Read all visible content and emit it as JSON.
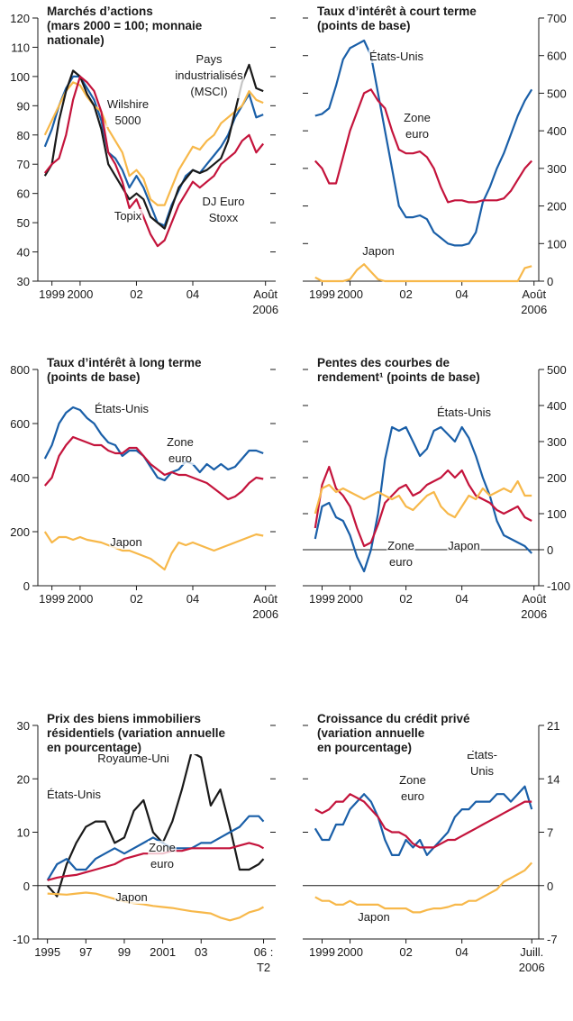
{
  "chart_data": [
    {
      "type": "line",
      "title": "Marchés d’actions\n(mars 2000 = 100; monnaie\nnationale)",
      "x": [
        1998.75,
        1999,
        1999.25,
        1999.5,
        1999.75,
        2000,
        2000.25,
        2000.5,
        2000.75,
        2001,
        2001.25,
        2001.5,
        2001.75,
        2002,
        2002.25,
        2002.5,
        2002.75,
        2003,
        2003.25,
        2003.5,
        2003.75,
        2004,
        2004.25,
        2004.5,
        2004.75,
        2005,
        2005.25,
        2005.5,
        2005.75,
        2006,
        2006.25,
        2006.5
      ],
      "xlim": [
        1998.5,
        2006.75
      ],
      "xticks": [
        1999,
        2000,
        {
          "value": 2002,
          "label": "02"
        },
        {
          "value": 2004,
          "label": "04"
        },
        {
          "value": 2006.58,
          "label": "Août\n2006"
        }
      ],
      "ylim": [
        30,
        120
      ],
      "yticks": [
        30,
        40,
        50,
        60,
        70,
        80,
        90,
        100,
        110,
        120
      ],
      "yaxis_side": "left",
      "zero_line": false,
      "series": [
        {
          "name": "Pays\nindustrialisés\n(MSCI)",
          "color": "#1a5fa8",
          "values": [
            76,
            82,
            90,
            96,
            100,
            100,
            96,
            92,
            85,
            74,
            72,
            68,
            62,
            66,
            62,
            56,
            50,
            49,
            56,
            61,
            66,
            68,
            67,
            70,
            73,
            76,
            80,
            86,
            90,
            94,
            86,
            87
          ]
        },
        {
          "name": "Wilshire\n5000",
          "color": "#f7b84a",
          "values": [
            80,
            85,
            90,
            95,
            98,
            97,
            93,
            90,
            88,
            82,
            78,
            74,
            66,
            68,
            65,
            58,
            56,
            56,
            62,
            68,
            72,
            76,
            75,
            78,
            80,
            84,
            86,
            88,
            90,
            95,
            92,
            91
          ]
        },
        {
          "name": "Topix",
          "color": "#1a1a1a",
          "values": [
            66,
            70,
            85,
            95,
            102,
            100,
            94,
            90,
            82,
            70,
            66,
            62,
            58,
            60,
            58,
            52,
            50,
            48,
            55,
            62,
            65,
            68,
            67,
            68,
            70,
            72,
            78,
            88,
            98,
            104,
            96,
            95
          ]
        },
        {
          "name": "DJ Euro\nStoxx",
          "color": "#c4143c",
          "values": [
            67,
            70,
            72,
            80,
            92,
            100,
            98,
            95,
            88,
            74,
            70,
            64,
            55,
            58,
            52,
            46,
            42,
            44,
            50,
            56,
            60,
            64,
            62,
            64,
            66,
            70,
            72,
            74,
            78,
            80,
            74,
            77
          ]
        }
      ]
    },
    {
      "type": "line",
      "title": "Taux d’intérêt à court terme\n(points de base)",
      "x": [
        1998.75,
        1999,
        1999.25,
        1999.5,
        1999.75,
        2000,
        2000.25,
        2000.5,
        2000.75,
        2001,
        2001.25,
        2001.5,
        2001.75,
        2002,
        2002.25,
        2002.5,
        2002.75,
        2003,
        2003.25,
        2003.5,
        2003.75,
        2004,
        2004.25,
        2004.5,
        2004.75,
        2005,
        2005.25,
        2005.5,
        2005.75,
        2006,
        2006.25,
        2006.5
      ],
      "xlim": [
        1998.5,
        2006.75
      ],
      "xticks": [
        1999,
        2000,
        {
          "value": 2002,
          "label": "02"
        },
        {
          "value": 2004,
          "label": "04"
        },
        {
          "value": 2006.58,
          "label": "Août\n2006"
        }
      ],
      "ylim": [
        0,
        700
      ],
      "yticks": [
        0,
        100,
        200,
        300,
        400,
        500,
        600,
        700
      ],
      "yaxis_side": "right",
      "zero_line": false,
      "series": [
        {
          "name": "États-Unis",
          "color": "#1a5fa8",
          "values": [
            440,
            445,
            460,
            520,
            590,
            620,
            630,
            640,
            600,
            500,
            400,
            300,
            200,
            170,
            170,
            175,
            165,
            130,
            115,
            100,
            95,
            95,
            100,
            130,
            210,
            250,
            300,
            340,
            390,
            440,
            480,
            510
          ]
        },
        {
          "name": "Zone\neuro",
          "color": "#c4143c",
          "values": [
            320,
            300,
            260,
            260,
            330,
            400,
            450,
            500,
            510,
            480,
            460,
            400,
            350,
            340,
            340,
            345,
            330,
            300,
            250,
            210,
            215,
            215,
            210,
            210,
            215,
            215,
            215,
            220,
            240,
            270,
            300,
            320
          ]
        },
        {
          "name": "Japon",
          "color": "#f7b84a",
          "values": [
            10,
            0,
            0,
            0,
            0,
            5,
            30,
            45,
            25,
            5,
            0,
            0,
            0,
            0,
            0,
            0,
            0,
            0,
            0,
            0,
            0,
            0,
            0,
            0,
            0,
            0,
            0,
            0,
            0,
            0,
            35,
            40
          ]
        }
      ]
    },
    {
      "type": "line",
      "title": "Taux d’intérêt à long terme\n(points de base)",
      "x": [
        1998.75,
        1999,
        1999.25,
        1999.5,
        1999.75,
        2000,
        2000.25,
        2000.5,
        2000.75,
        2001,
        2001.25,
        2001.5,
        2001.75,
        2002,
        2002.25,
        2002.5,
        2002.75,
        2003,
        2003.25,
        2003.5,
        2003.75,
        2004,
        2004.25,
        2004.5,
        2004.75,
        2005,
        2005.25,
        2005.5,
        2005.75,
        2006,
        2006.25,
        2006.5
      ],
      "xlim": [
        1998.5,
        2006.75
      ],
      "xticks": [
        1999,
        2000,
        {
          "value": 2002,
          "label": "02"
        },
        {
          "value": 2004,
          "label": "04"
        },
        {
          "value": 2006.58,
          "label": "Août\n2006"
        }
      ],
      "ylim": [
        0,
        800
      ],
      "yticks": [
        0,
        200,
        400,
        600,
        800
      ],
      "yaxis_side": "left",
      "zero_line": false,
      "series": [
        {
          "name": "États-Unis",
          "color": "#1a5fa8",
          "values": [
            470,
            520,
            600,
            640,
            660,
            650,
            620,
            600,
            560,
            530,
            520,
            480,
            500,
            500,
            480,
            440,
            400,
            390,
            420,
            430,
            460,
            450,
            420,
            450,
            430,
            450,
            430,
            440,
            470,
            500,
            500,
            490
          ]
        },
        {
          "name": "Zone\neuro",
          "color": "#c4143c",
          "values": [
            370,
            400,
            480,
            520,
            550,
            540,
            530,
            520,
            520,
            500,
            490,
            490,
            510,
            510,
            480,
            450,
            430,
            410,
            420,
            410,
            410,
            400,
            390,
            380,
            360,
            340,
            320,
            330,
            350,
            380,
            400,
            395
          ]
        },
        {
          "name": "Japon",
          "color": "#f7b84a",
          "values": [
            200,
            160,
            180,
            180,
            170,
            180,
            170,
            165,
            160,
            150,
            140,
            130,
            130,
            120,
            110,
            100,
            80,
            60,
            120,
            160,
            150,
            160,
            150,
            140,
            130,
            140,
            150,
            160,
            170,
            180,
            190,
            185
          ]
        }
      ]
    },
    {
      "type": "line",
      "title": "Pentes des courbes de\nrendement¹ (points de base)",
      "x": [
        1998.75,
        1999,
        1999.25,
        1999.5,
        1999.75,
        2000,
        2000.25,
        2000.5,
        2000.75,
        2001,
        2001.25,
        2001.5,
        2001.75,
        2002,
        2002.25,
        2002.5,
        2002.75,
        2003,
        2003.25,
        2003.5,
        2003.75,
        2004,
        2004.25,
        2004.5,
        2004.75,
        2005,
        2005.25,
        2005.5,
        2005.75,
        2006,
        2006.25,
        2006.5
      ],
      "xlim": [
        1998.5,
        2006.75
      ],
      "xticks": [
        1999,
        2000,
        {
          "value": 2002,
          "label": "02"
        },
        {
          "value": 2004,
          "label": "04"
        },
        {
          "value": 2006.58,
          "label": "Août\n2006"
        }
      ],
      "ylim": [
        -100,
        500
      ],
      "yticks": [
        -100,
        0,
        100,
        200,
        300,
        400,
        500
      ],
      "yaxis_side": "right",
      "zero_line": true,
      "series": [
        {
          "name": "États-Unis",
          "color": "#1a5fa8",
          "values": [
            30,
            120,
            130,
            90,
            80,
            40,
            -20,
            -60,
            0,
            100,
            250,
            340,
            330,
            340,
            300,
            260,
            280,
            330,
            340,
            320,
            300,
            340,
            310,
            260,
            200,
            150,
            80,
            40,
            30,
            20,
            10,
            -10
          ]
        },
        {
          "name": "Zone\neuro",
          "color": "#c4143c",
          "values": [
            60,
            180,
            230,
            170,
            150,
            120,
            60,
            10,
            20,
            70,
            130,
            150,
            170,
            180,
            150,
            160,
            180,
            190,
            200,
            220,
            200,
            220,
            180,
            150,
            140,
            130,
            110,
            100,
            110,
            120,
            90,
            80
          ]
        },
        {
          "name": "Japon",
          "color": "#f7b84a",
          "values": [
            100,
            170,
            180,
            160,
            170,
            160,
            150,
            140,
            150,
            160,
            150,
            140,
            150,
            120,
            110,
            130,
            150,
            160,
            120,
            100,
            90,
            120,
            150,
            140,
            170,
            150,
            160,
            170,
            160,
            190,
            150,
            150
          ]
        }
      ]
    },
    {
      "type": "line",
      "title": "Prix des biens immobiliers\nrésidentiels (variation annuelle\nen pourcentage)",
      "x": [
        1995,
        1995.5,
        1996,
        1996.5,
        1997,
        1997.5,
        1998,
        1998.5,
        1999,
        1999.5,
        2000,
        2000.5,
        2001,
        2001.5,
        2002,
        2002.5,
        2003,
        2003.5,
        2004,
        2004.5,
        2005,
        2005.5,
        2006,
        2006.25
      ],
      "xlim": [
        1994.5,
        2006.6
      ],
      "xticks": [
        1995,
        {
          "value": 1997,
          "label": "97"
        },
        {
          "value": 1999,
          "label": "99"
        },
        2001,
        {
          "value": 2003,
          "label": "03"
        },
        {
          "value": 2006.25,
          "label": "06 :\nT2"
        }
      ],
      "ylim": [
        -10,
        30
      ],
      "yticks": [
        -10,
        0,
        10,
        20,
        30
      ],
      "yaxis_side": "left",
      "zero_line": true,
      "series": [
        {
          "name": "Royaume-Uni",
          "color": "#1a1a1a",
          "values": [
            0,
            -2,
            4,
            8,
            11,
            12,
            12,
            8,
            9,
            14,
            16,
            10,
            8,
            12,
            18,
            25,
            24,
            15,
            18,
            11,
            3,
            3,
            4,
            5
          ]
        },
        {
          "name": "États-Unis",
          "color": "#1a5fa8",
          "values": [
            1,
            4,
            5,
            3,
            3,
            5,
            6,
            7,
            6,
            7,
            8,
            9,
            8,
            7,
            7,
            7,
            8,
            8,
            9,
            10,
            11,
            13,
            13,
            12
          ]
        },
        {
          "name": "Zone\neuro",
          "color": "#c4143c",
          "values": [
            1,
            1.5,
            1.8,
            2,
            2.5,
            3,
            3.5,
            4,
            5,
            5.5,
            6,
            6,
            6,
            6.5,
            6.5,
            7,
            7,
            7,
            7,
            7,
            7.5,
            8,
            7.5,
            7
          ]
        },
        {
          "name": "Japon",
          "color": "#f7b84a",
          "values": [
            -1.5,
            -1.6,
            -1.7,
            -1.5,
            -1.3,
            -1.5,
            -2,
            -2.5,
            -3,
            -3.3,
            -3.5,
            -3.8,
            -4,
            -4.2,
            -4.5,
            -4.8,
            -5,
            -5.2,
            -6,
            -6.5,
            -6,
            -5,
            -4.5,
            -4
          ]
        }
      ]
    },
    {
      "type": "line",
      "title": "Croissance du crédit privé\n(variation annuelle\nen pourcentage)",
      "x": [
        1998.75,
        1999,
        1999.25,
        1999.5,
        1999.75,
        2000,
        2000.25,
        2000.5,
        2000.75,
        2001,
        2001.25,
        2001.5,
        2001.75,
        2002,
        2002.25,
        2002.5,
        2002.75,
        2003,
        2003.25,
        2003.5,
        2003.75,
        2004,
        2004.25,
        2004.5,
        2004.75,
        2005,
        2005.25,
        2005.5,
        2005.75,
        2006,
        2006.25,
        2006.5
      ],
      "xlim": [
        1998.5,
        2006.75
      ],
      "xticks": [
        1999,
        2000,
        {
          "value": 2002,
          "label": "02"
        },
        {
          "value": 2004,
          "label": "04"
        },
        {
          "value": 2006.5,
          "label": "Juill.\n2006"
        }
      ],
      "ylim": [
        -7,
        21
      ],
      "yticks": [
        -7,
        0,
        7,
        14,
        21
      ],
      "yaxis_side": "right",
      "zero_line": true,
      "series": [
        {
          "name": "États-\nUnis",
          "color": "#1a5fa8",
          "values": [
            7.5,
            6,
            6,
            8,
            8,
            10,
            11,
            12,
            11,
            9,
            6,
            4,
            4,
            6,
            5,
            6,
            4,
            5,
            6,
            7,
            9,
            10,
            10,
            11,
            11,
            11,
            12,
            12,
            11,
            12,
            13,
            10
          ]
        },
        {
          "name": "Zone\neuro",
          "color": "#c4143c",
          "values": [
            10,
            9.5,
            10,
            11,
            11,
            12,
            11.5,
            11,
            10,
            9,
            7.5,
            7,
            7,
            6.5,
            5.5,
            5,
            5,
            5,
            5.5,
            6,
            6,
            6.5,
            7,
            7.5,
            8,
            8.5,
            9,
            9.5,
            10,
            10.5,
            11,
            11
          ]
        },
        {
          "name": "Japon",
          "color": "#f7b84a",
          "values": [
            -1.5,
            -2,
            -2,
            -2.5,
            -2.5,
            -2,
            -2.5,
            -2.5,
            -2.5,
            -2.5,
            -3,
            -3,
            -3,
            -3,
            -3.5,
            -3.5,
            -3.2,
            -3,
            -3,
            -2.8,
            -2.5,
            -2.5,
            -2,
            -2,
            -1.5,
            -1,
            -0.5,
            0.5,
            1,
            1.5,
            2,
            3
          ]
        }
      ]
    }
  ]
}
